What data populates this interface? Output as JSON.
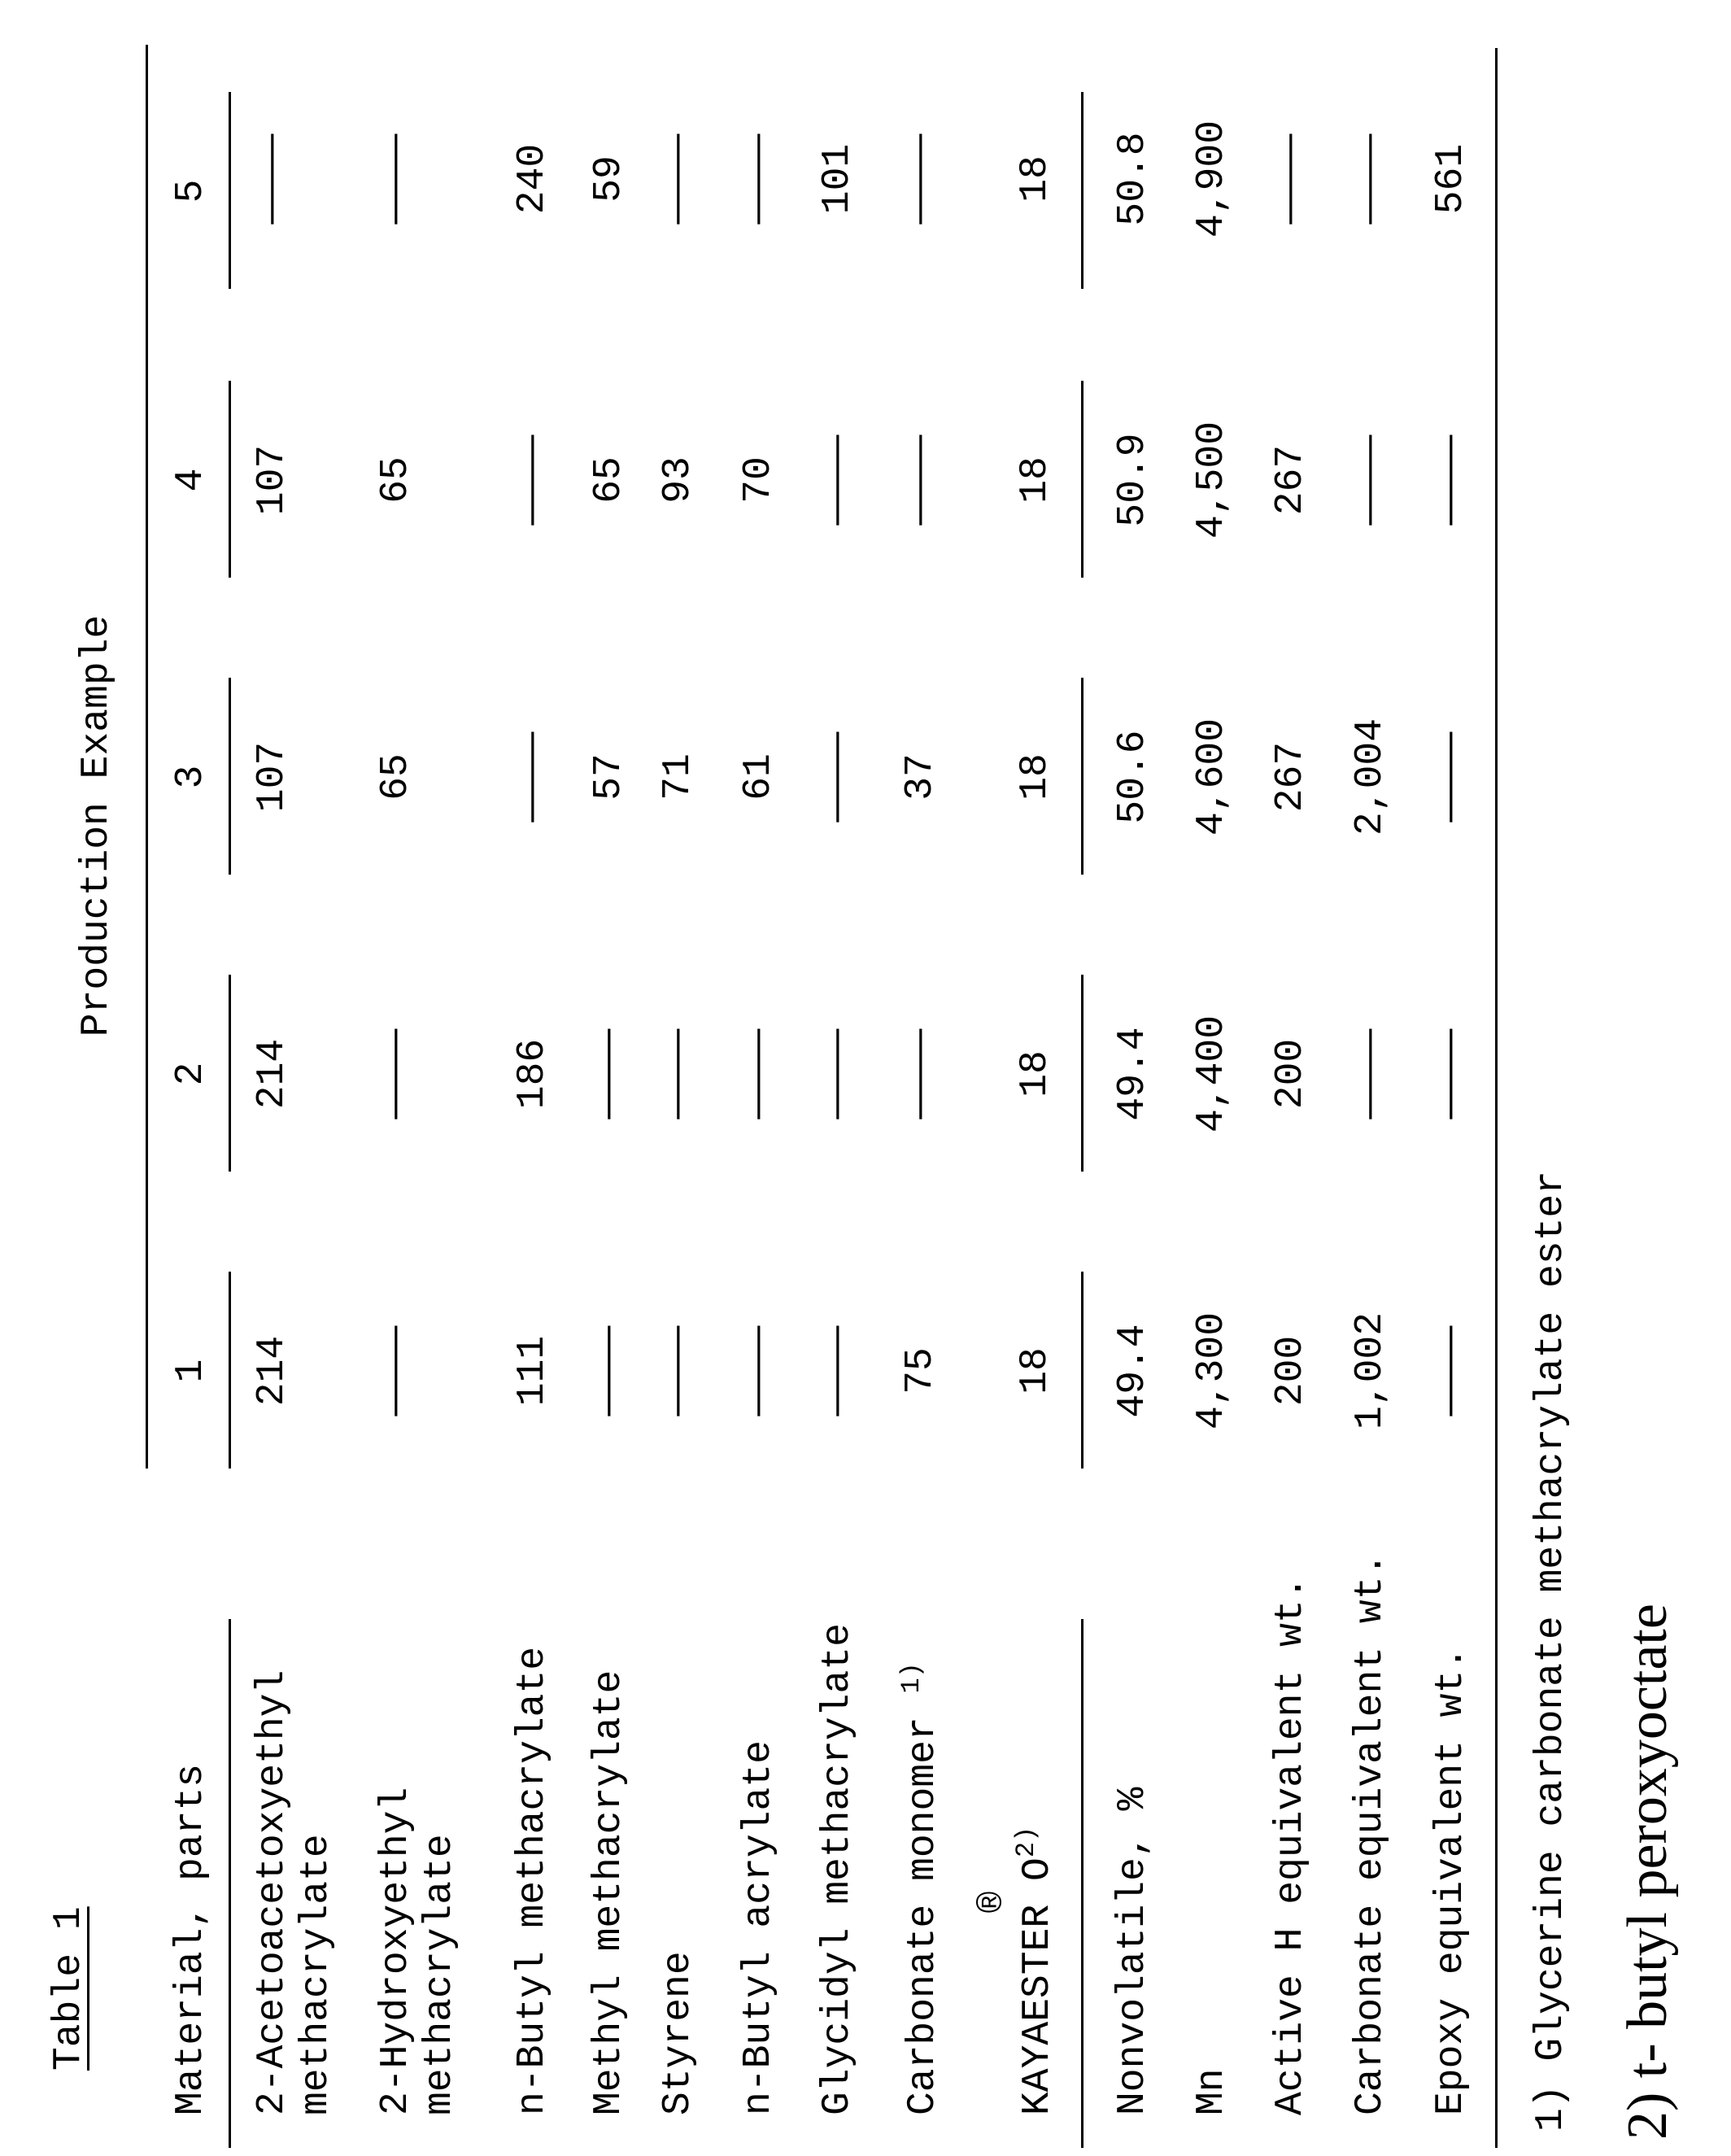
{
  "table_title": "Table 1",
  "group_header": "Production Example",
  "label_header": "Material, parts",
  "columns": [
    "1",
    "2",
    "3",
    "4",
    "5"
  ],
  "rows": [
    {
      "label": "2-Acetoacetoxyethyl",
      "label_line2": "methacrylate",
      "values": [
        "214",
        "214",
        "107",
        "107",
        "—"
      ]
    },
    {
      "label": "2-Hydroxyethyl",
      "label_line2": "methacrylate",
      "values": [
        "—",
        "—",
        "65",
        "65",
        "—"
      ]
    },
    {
      "label": "n-Butyl methacrylate",
      "values": [
        "111",
        "186",
        "—",
        "—",
        "240"
      ]
    },
    {
      "label": "Methyl methacrylate",
      "values": [
        "—",
        "—",
        "57",
        "65",
        "59"
      ]
    },
    {
      "label": "Styrene",
      "values": [
        "—",
        "—",
        "71",
        "93",
        "—"
      ]
    },
    {
      "label": "n-Butyl acrylate",
      "values": [
        "—",
        "—",
        "61",
        "70",
        "—"
      ]
    },
    {
      "label": "Glycidyl methacrylate",
      "values": [
        "—",
        "—",
        "—",
        "—",
        "101"
      ]
    },
    {
      "label": "Carbonate monomer ",
      "note": "1)",
      "values": [
        "75",
        "—",
        "37",
        "—",
        "—"
      ]
    },
    {
      "label": "KAYAESTER O",
      "note": "2)",
      "mark": "®",
      "values": [
        "18",
        "18",
        "18",
        "18",
        "18"
      ]
    },
    {
      "label": "Nonvolatile, %",
      "values": [
        "49.4",
        "49.4",
        "50.6",
        "50.9",
        "50.8"
      ]
    },
    {
      "label": "Mn",
      "values": [
        "4,300",
        "4,400",
        "4,600",
        "4,500",
        "4,900"
      ]
    },
    {
      "label": "Active H equivalent wt.",
      "values": [
        "200",
        "200",
        "267",
        "267",
        "—"
      ]
    },
    {
      "label": "Carbonate equivalent wt.",
      "values": [
        "1,002",
        "—",
        "2,004",
        "—",
        "—"
      ]
    },
    {
      "label": "Epoxy equivalent wt.",
      "values": [
        "—",
        "—",
        "—",
        "—",
        "561"
      ]
    }
  ],
  "footnotes": [
    "1) Glycerine carbonate methacrylate ester",
    "2) t- butyl peroxyoctate"
  ]
}
